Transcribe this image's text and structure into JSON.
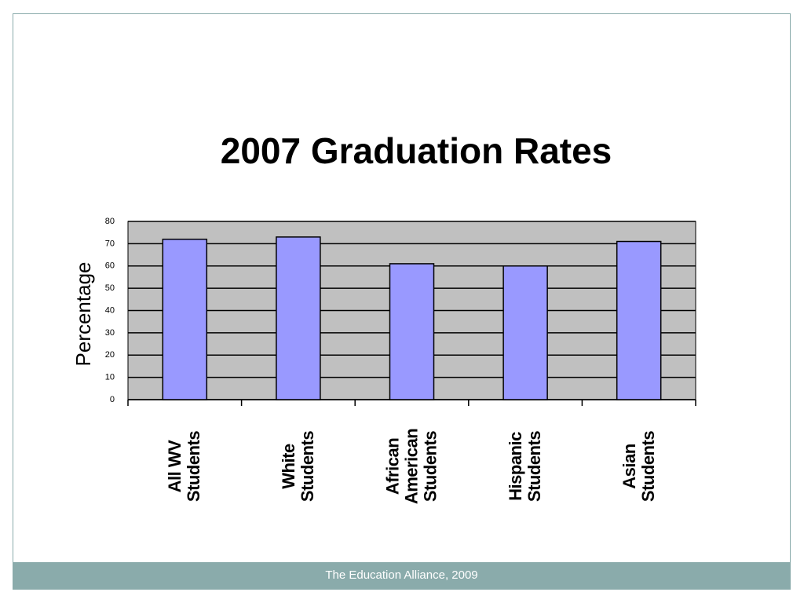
{
  "chart_data": {
    "type": "bar",
    "title": "2007 Graduation Rates",
    "y_label": "Percentage",
    "categories": [
      "All WV Students",
      "White Students",
      "African American Students",
      "Hispanic Students",
      "Asian Students"
    ],
    "values": [
      72,
      73,
      61,
      60,
      71
    ],
    "color": "#9999ff",
    "plot_background": "#c0c0c0",
    "ylim": [
      0,
      80
    ],
    "yticks": [
      0,
      10,
      20,
      30,
      40,
      50,
      60,
      70,
      80
    ],
    "grid": true
  },
  "footer": "The Education Alliance, 2009"
}
